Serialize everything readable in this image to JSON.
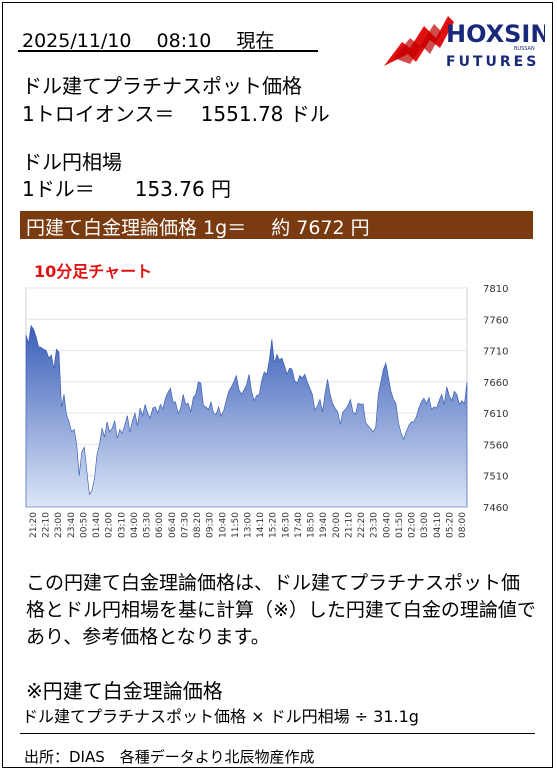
{
  "header": {
    "datetime": "2025/11/10　 08:10　  現在",
    "logo_main": "HOXSIN",
    "logo_sub": "FUTURES",
    "logo_small": "BUSSAN"
  },
  "spot": {
    "label": "ドル建てプラチナスポット価格",
    "line": "1トロイオンス＝　 1551.78 ドル"
  },
  "fx": {
    "label": "ドル円相場",
    "line": "1ドル＝　　153.76 円"
  },
  "band": {
    "text": "円建て白金理論価格 1g＝　 約 7672 円",
    "color": "#7a3b10"
  },
  "chart_title": "10分足チャート",
  "chart_data": {
    "type": "area",
    "title": "10分足チャート",
    "ylim": [
      7460,
      7810
    ],
    "yticks": [
      7460,
      7510,
      7560,
      7610,
      7660,
      7710,
      7760,
      7810
    ],
    "xticks": [
      "21:20",
      "22:10",
      "23:00",
      "23:40",
      "00:50",
      "01:40",
      "02:00",
      "03:10",
      "04:00",
      "05:30",
      "06:00",
      "06:40",
      "07:30",
      "08:20",
      "09:30",
      "10:40",
      "11:50",
      "13:00",
      "14:10",
      "15:20",
      "16:30",
      "17:40",
      "18:50",
      "19:40",
      "20:00",
      "21:10",
      "22:20",
      "23:30",
      "00:40",
      "01:50",
      "02:00",
      "03:00",
      "04:10",
      "05:20",
      "08:00"
    ],
    "values": [
      7735,
      7722,
      7750,
      7744,
      7732,
      7716,
      7715,
      7712,
      7710,
      7698,
      7703,
      7681,
      7712,
      7708,
      7620,
      7640,
      7607,
      7596,
      7580,
      7584,
      7560,
      7510,
      7548,
      7556,
      7518,
      7480,
      7486,
      7505,
      7544,
      7560,
      7586,
      7572,
      7596,
      7580,
      7586,
      7598,
      7570,
      7584,
      7578,
      7592,
      7606,
      7580,
      7598,
      7610,
      7590,
      7618,
      7606,
      7624,
      7610,
      7602,
      7618,
      7620,
      7610,
      7624,
      7617,
      7634,
      7643,
      7650,
      7628,
      7628,
      7610,
      7617,
      7640,
      7624,
      7626,
      7612,
      7635,
      7640,
      7660,
      7658,
      7622,
      7620,
      7616,
      7628,
      7610,
      7608,
      7620,
      7605,
      7614,
      7630,
      7645,
      7652,
      7660,
      7670,
      7648,
      7640,
      7647,
      7655,
      7672,
      7645,
      7630,
      7638,
      7640,
      7662,
      7676,
      7672,
      7695,
      7728,
      7690,
      7704,
      7695,
      7698,
      7686,
      7672,
      7682,
      7680,
      7662,
      7658,
      7670,
      7666,
      7672,
      7660,
      7650,
      7640,
      7615,
      7622,
      7632,
      7612,
      7642,
      7664,
      7640,
      7625,
      7618,
      7612,
      7592,
      7612,
      7616,
      7622,
      7632,
      7612,
      7608,
      7626,
      7624,
      7625,
      7595,
      7590,
      7585,
      7580,
      7588,
      7640,
      7660,
      7680,
      7690,
      7667,
      7645,
      7632,
      7625,
      7594,
      7578,
      7568,
      7580,
      7590,
      7596,
      7596,
      7604,
      7618,
      7628,
      7634,
      7625,
      7635,
      7616,
      7620,
      7618,
      7630,
      7640,
      7624,
      7652,
      7638,
      7630,
      7645,
      7640,
      7624,
      7630,
      7625,
      7660
    ]
  },
  "description": "この円建て白金理論価格は、ドル建てプラチナスポット価格とドル円相場を基に計算（※）した円建て白金の理論値であり、参考価格となります。",
  "formula": {
    "title": "※円建て白金理論価格",
    "text": "ドル建てプラチナスポット価格 × ドル円相場 ÷ 31.1g"
  },
  "source": "出所：DIAS　各種データより北辰物産作成"
}
